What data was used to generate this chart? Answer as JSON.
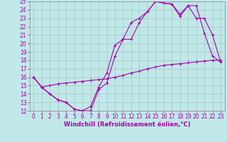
{
  "background_color": "#c0e8e8",
  "line_color": "#aa00aa",
  "grid_color": "#aacccc",
  "xlabel": "Windchill (Refroidissement éolien,°C)",
  "xlabel_fontsize": 6,
  "tick_fontsize": 5.5,
  "xlim": [
    -0.5,
    23.5
  ],
  "ylim": [
    12,
    25
  ],
  "yticks": [
    12,
    13,
    14,
    15,
    16,
    17,
    18,
    19,
    20,
    21,
    22,
    23,
    24,
    25
  ],
  "xticks": [
    0,
    1,
    2,
    3,
    4,
    5,
    6,
    7,
    8,
    9,
    10,
    11,
    12,
    13,
    14,
    15,
    16,
    17,
    18,
    19,
    20,
    21,
    22,
    23
  ],
  "series": [
    {
      "x": [
        0,
        1,
        2,
        3,
        4,
        5,
        6,
        7,
        8,
        9,
        10,
        11,
        12,
        13,
        14,
        15,
        16,
        17,
        18,
        19,
        20,
        21,
        22,
        23
      ],
      "y": [
        16,
        14.8,
        14.0,
        13.3,
        13.0,
        12.2,
        12.0,
        12.0,
        14.5,
        15.3,
        18.5,
        20.5,
        22.5,
        23.0,
        23.8,
        25.0,
        24.8,
        24.7,
        23.2,
        24.5,
        24.5,
        21.2,
        18.5,
        17.8
      ]
    },
    {
      "x": [
        0,
        1,
        2,
        3,
        4,
        5,
        6,
        7,
        8,
        9,
        10,
        11,
        12,
        13,
        14,
        15,
        16,
        17,
        18,
        19,
        20,
        21,
        22,
        23
      ],
      "y": [
        16,
        14.8,
        14.0,
        13.3,
        13.0,
        12.2,
        12.0,
        12.5,
        14.8,
        16.5,
        19.8,
        20.5,
        20.5,
        22.5,
        23.8,
        25.0,
        24.8,
        24.7,
        23.5,
        24.5,
        23.0,
        23.0,
        21.0,
        17.8
      ]
    },
    {
      "x": [
        0,
        1,
        2,
        3,
        4,
        5,
        6,
        7,
        8,
        9,
        10,
        11,
        12,
        13,
        14,
        15,
        16,
        17,
        18,
        19,
        20,
        21,
        22,
        23
      ],
      "y": [
        16,
        14.8,
        15.0,
        15.2,
        15.3,
        15.4,
        15.5,
        15.6,
        15.7,
        15.8,
        16.0,
        16.2,
        16.5,
        16.7,
        17.0,
        17.2,
        17.4,
        17.5,
        17.6,
        17.7,
        17.8,
        17.9,
        18.0,
        18.0
      ]
    }
  ]
}
